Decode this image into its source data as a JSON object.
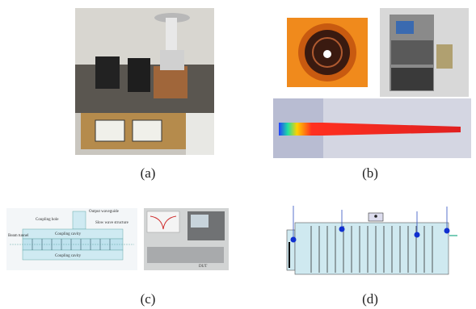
{
  "figure": {
    "panels": [
      {
        "caption": "(a)"
      },
      {
        "caption": "(b)"
      },
      {
        "caption": "(c)",
        "labels": [
          "Coupling hole",
          "Output waveguide",
          "Slow wave structure",
          "Beam tunnel",
          "Coupling cavity",
          "Coupling cavity",
          "DUT"
        ]
      },
      {
        "caption": "(d)"
      }
    ]
  }
}
